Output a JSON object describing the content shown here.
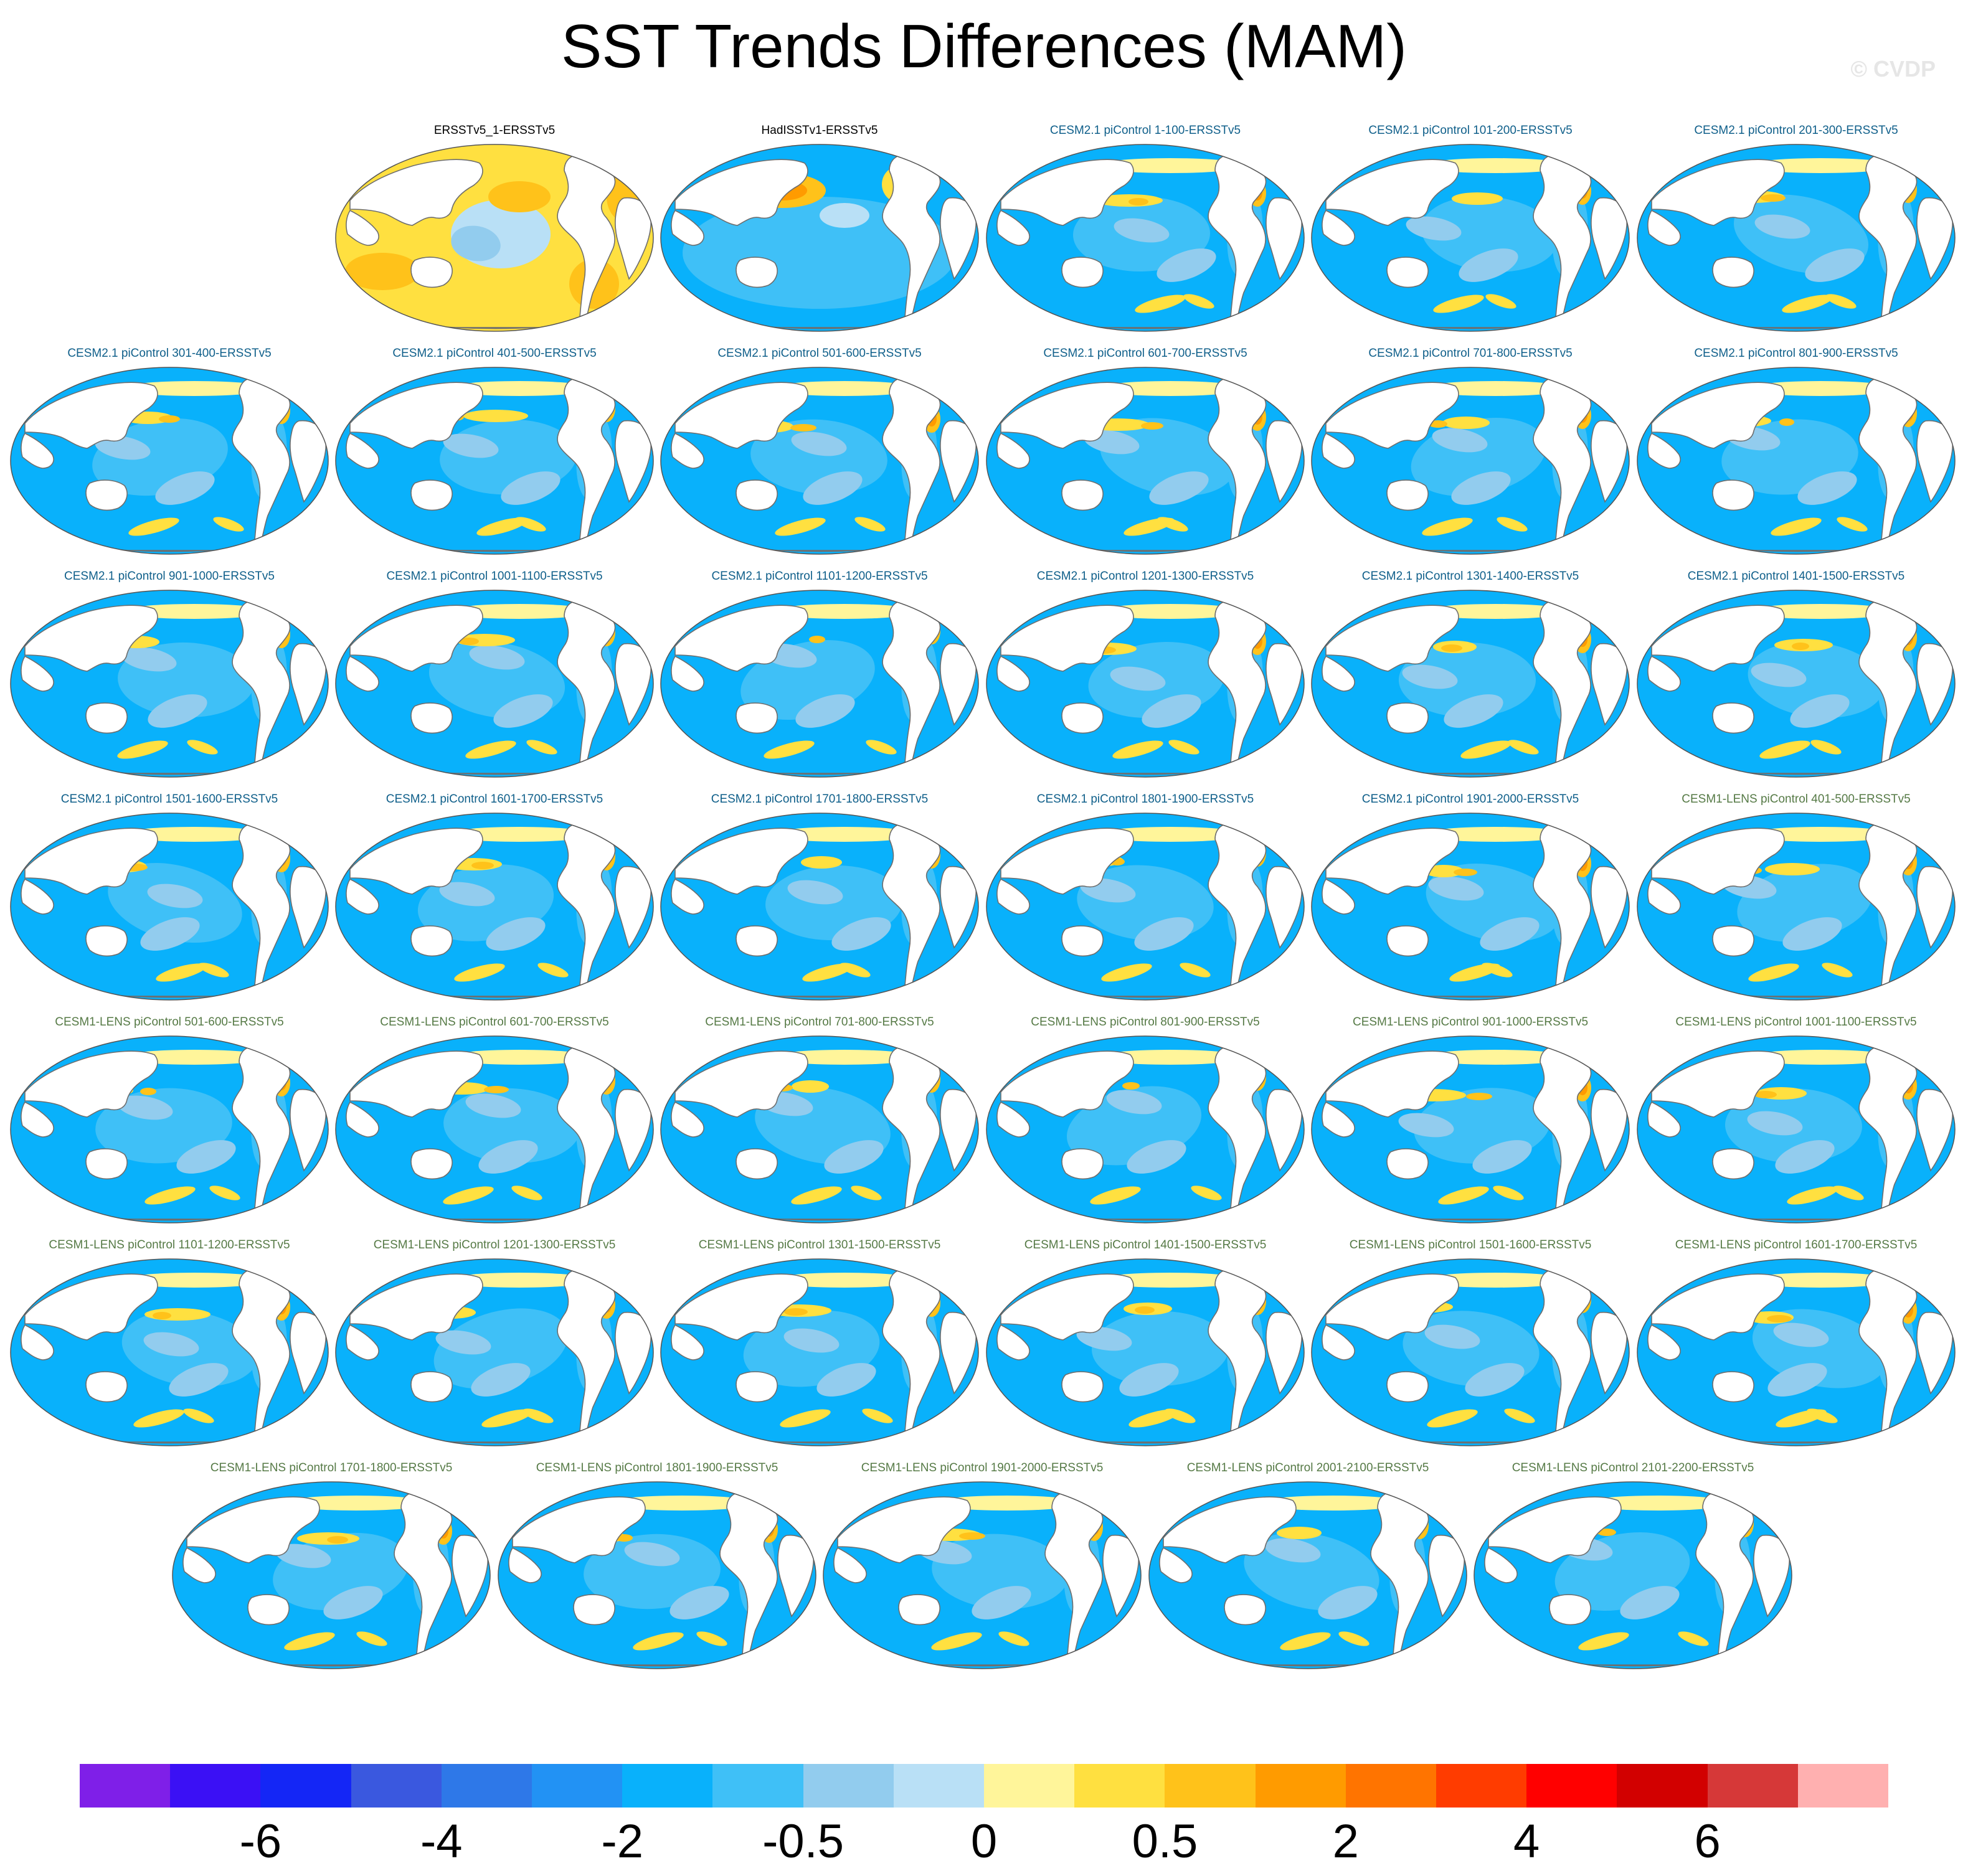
{
  "title": "SST Trends Differences (MAM)",
  "watermark": "© CVDP",
  "colors": {
    "obs_title": "#000000",
    "cesm2_title": "#0f5f8a",
    "cesm1_title": "#567a46",
    "land": "#ffffff",
    "coast": "#6e6e6e"
  },
  "panels": [
    {
      "title": "ERSSTv5_1-ERSSTv5",
      "group": "obs",
      "pattern": "warm_global"
    },
    {
      "title": "HadISSTv1-ERSSTv5",
      "group": "obs",
      "pattern": "warm_north_pacific"
    },
    {
      "title": "CESM2.1 piControl 1-100-ERSSTv5",
      "group": "cesm2",
      "pattern": "cool"
    },
    {
      "title": "CESM2.1 piControl 101-200-ERSSTv5",
      "group": "cesm2",
      "pattern": "cool"
    },
    {
      "title": "CESM2.1 piControl 201-300-ERSSTv5",
      "group": "cesm2",
      "pattern": "cool"
    },
    {
      "title": "CESM2.1 piControl 301-400-ERSSTv5",
      "group": "cesm2",
      "pattern": "cool"
    },
    {
      "title": "CESM2.1 piControl 401-500-ERSSTv5",
      "group": "cesm2",
      "pattern": "cool"
    },
    {
      "title": "CESM2.1 piControl 501-600-ERSSTv5",
      "group": "cesm2",
      "pattern": "cool"
    },
    {
      "title": "CESM2.1 piControl 601-700-ERSSTv5",
      "group": "cesm2",
      "pattern": "cool"
    },
    {
      "title": "CESM2.1 piControl 701-800-ERSSTv5",
      "group": "cesm2",
      "pattern": "cool"
    },
    {
      "title": "CESM2.1 piControl 801-900-ERSSTv5",
      "group": "cesm2",
      "pattern": "cool"
    },
    {
      "title": "CESM2.1 piControl 901-1000-ERSSTv5",
      "group": "cesm2",
      "pattern": "cool"
    },
    {
      "title": "CESM2.1 piControl 1001-1100-ERSSTv5",
      "group": "cesm2",
      "pattern": "cool"
    },
    {
      "title": "CESM2.1 piControl 1101-1200-ERSSTv5",
      "group": "cesm2",
      "pattern": "cool"
    },
    {
      "title": "CESM2.1 piControl 1201-1300-ERSSTv5",
      "group": "cesm2",
      "pattern": "cool"
    },
    {
      "title": "CESM2.1 piControl 1301-1400-ERSSTv5",
      "group": "cesm2",
      "pattern": "cool"
    },
    {
      "title": "CESM2.1 piControl 1401-1500-ERSSTv5",
      "group": "cesm2",
      "pattern": "cool"
    },
    {
      "title": "CESM2.1 piControl 1501-1600-ERSSTv5",
      "group": "cesm2",
      "pattern": "cool"
    },
    {
      "title": "CESM2.1 piControl 1601-1700-ERSSTv5",
      "group": "cesm2",
      "pattern": "cool"
    },
    {
      "title": "CESM2.1 piControl 1701-1800-ERSSTv5",
      "group": "cesm2",
      "pattern": "cool"
    },
    {
      "title": "CESM2.1 piControl 1801-1900-ERSSTv5",
      "group": "cesm2",
      "pattern": "cool"
    },
    {
      "title": "CESM2.1 piControl 1901-2000-ERSSTv5",
      "group": "cesm2",
      "pattern": "cool"
    },
    {
      "title": "CESM1-LENS piControl 401-500-ERSSTv5",
      "group": "cesm1",
      "pattern": "cool"
    },
    {
      "title": "CESM1-LENS piControl 501-600-ERSSTv5",
      "group": "cesm1",
      "pattern": "cool"
    },
    {
      "title": "CESM1-LENS piControl 601-700-ERSSTv5",
      "group": "cesm1",
      "pattern": "cool"
    },
    {
      "title": "CESM1-LENS piControl 701-800-ERSSTv5",
      "group": "cesm1",
      "pattern": "cool"
    },
    {
      "title": "CESM1-LENS piControl 801-900-ERSSTv5",
      "group": "cesm1",
      "pattern": "cool"
    },
    {
      "title": "CESM1-LENS piControl 901-1000-ERSSTv5",
      "group": "cesm1",
      "pattern": "cool"
    },
    {
      "title": "CESM1-LENS piControl 1001-1100-ERSSTv5",
      "group": "cesm1",
      "pattern": "cool"
    },
    {
      "title": "CESM1-LENS piControl 1101-1200-ERSSTv5",
      "group": "cesm1",
      "pattern": "cool"
    },
    {
      "title": "CESM1-LENS piControl 1201-1300-ERSSTv5",
      "group": "cesm1",
      "pattern": "cool"
    },
    {
      "title": "CESM1-LENS piControl 1301-1500-ERSSTv5",
      "group": "cesm1",
      "pattern": "cool"
    },
    {
      "title": "CESM1-LENS piControl 1401-1500-ERSSTv5",
      "group": "cesm1",
      "pattern": "cool"
    },
    {
      "title": "CESM1-LENS piControl 1501-1600-ERSSTv5",
      "group": "cesm1",
      "pattern": "cool"
    },
    {
      "title": "CESM1-LENS piControl 1601-1700-ERSSTv5",
      "group": "cesm1",
      "pattern": "cool"
    },
    {
      "title": "CESM1-LENS piControl 1701-1800-ERSSTv5",
      "group": "cesm1",
      "pattern": "cool"
    },
    {
      "title": "CESM1-LENS piControl 1801-1900-ERSSTv5",
      "group": "cesm1",
      "pattern": "cool"
    },
    {
      "title": "CESM1-LENS piControl 1901-2000-ERSSTv5",
      "group": "cesm1",
      "pattern": "cool"
    },
    {
      "title": "CESM1-LENS piControl 2001-2100-ERSSTv5",
      "group": "cesm1",
      "pattern": "cool"
    },
    {
      "title": "CESM1-LENS piControl 2101-2200-ERSSTv5",
      "group": "cesm1",
      "pattern": "cool"
    }
  ],
  "colorbar": {
    "colors": [
      "#7f1fe8",
      "#3b10f5",
      "#1426f6",
      "#3a58df",
      "#2e78e8",
      "#2292f4",
      "#09b1fb",
      "#3fc0f7",
      "#92ccee",
      "#b9e0f6",
      "#fff59a",
      "#ffe040",
      "#ffc21a",
      "#ff9b00",
      "#ff7400",
      "#ff3c00",
      "#ff0000",
      "#d20000",
      "#d63838",
      "#ffb0b0"
    ],
    "labels": [
      {
        "text": "-6",
        "boundary": 2
      },
      {
        "text": "-4",
        "boundary": 4
      },
      {
        "text": "-2",
        "boundary": 6
      },
      {
        "text": "-0.5",
        "boundary": 8
      },
      {
        "text": "0",
        "boundary": 10
      },
      {
        "text": "0.5",
        "boundary": 12
      },
      {
        "text": "2",
        "boundary": 14
      },
      {
        "text": "4",
        "boundary": 16
      },
      {
        "text": "6",
        "boundary": 18
      }
    ]
  }
}
